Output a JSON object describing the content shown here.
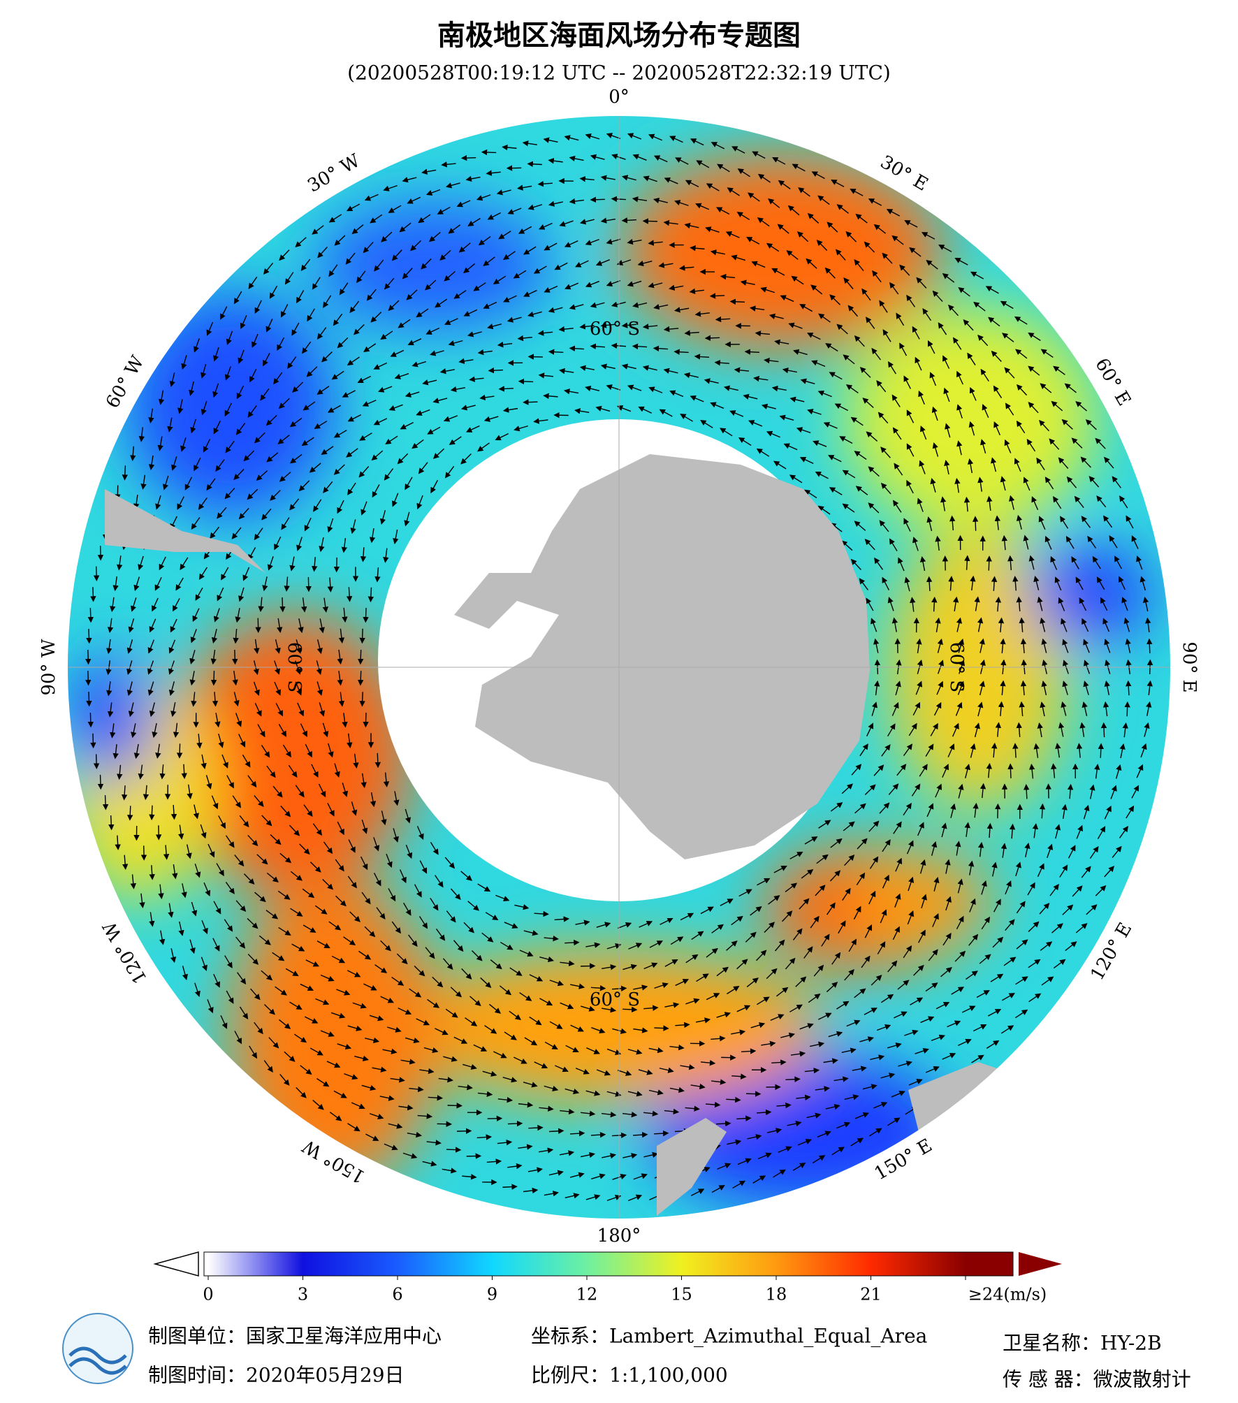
{
  "header": {
    "title": "南极地区海面风场分布专题图",
    "subtitle": "(20200528T00:19:12 UTC -- 20200528T22:32:19 UTC)"
  },
  "map": {
    "lon_labels": [
      "0°",
      "30° E",
      "60° E",
      "90° E",
      "120° E",
      "150° E",
      "180°",
      "150° W",
      "120° W",
      "90° W",
      "60° W",
      "30° W"
    ],
    "lat_label": "60° S"
  },
  "colorbar": {
    "lim": [
      0,
      24
    ],
    "ticks": [
      0,
      3,
      6,
      9,
      12,
      15,
      18,
      21,
      {
        "value": 24,
        "label": "≥24(m/s)"
      }
    ],
    "colormap": [
      {
        "value": 0,
        "color": "#ffffff"
      },
      {
        "value": 3,
        "color": "#1010e0"
      },
      {
        "value": 6,
        "color": "#1a5cff"
      },
      {
        "value": 9,
        "color": "#10d8ff"
      },
      {
        "value": 12,
        "color": "#6ef0a0"
      },
      {
        "value": 15,
        "color": "#f0f020"
      },
      {
        "value": 18,
        "color": "#ff9a10"
      },
      {
        "value": 21,
        "color": "#ff2a00"
      },
      {
        "value": 24,
        "color": "#8a0000"
      }
    ]
  },
  "footer": {
    "unit": "制图单位：国家卫星海洋应用中心",
    "crs": "坐标系：Lambert_Azimuthal_Equal_Area",
    "satellite": "卫星名称：HY-2B",
    "date": "制图时间：2020年05月29日",
    "scale": "比例尺：1:1,100,000",
    "sensor": "传 感 器：微波散射计"
  }
}
